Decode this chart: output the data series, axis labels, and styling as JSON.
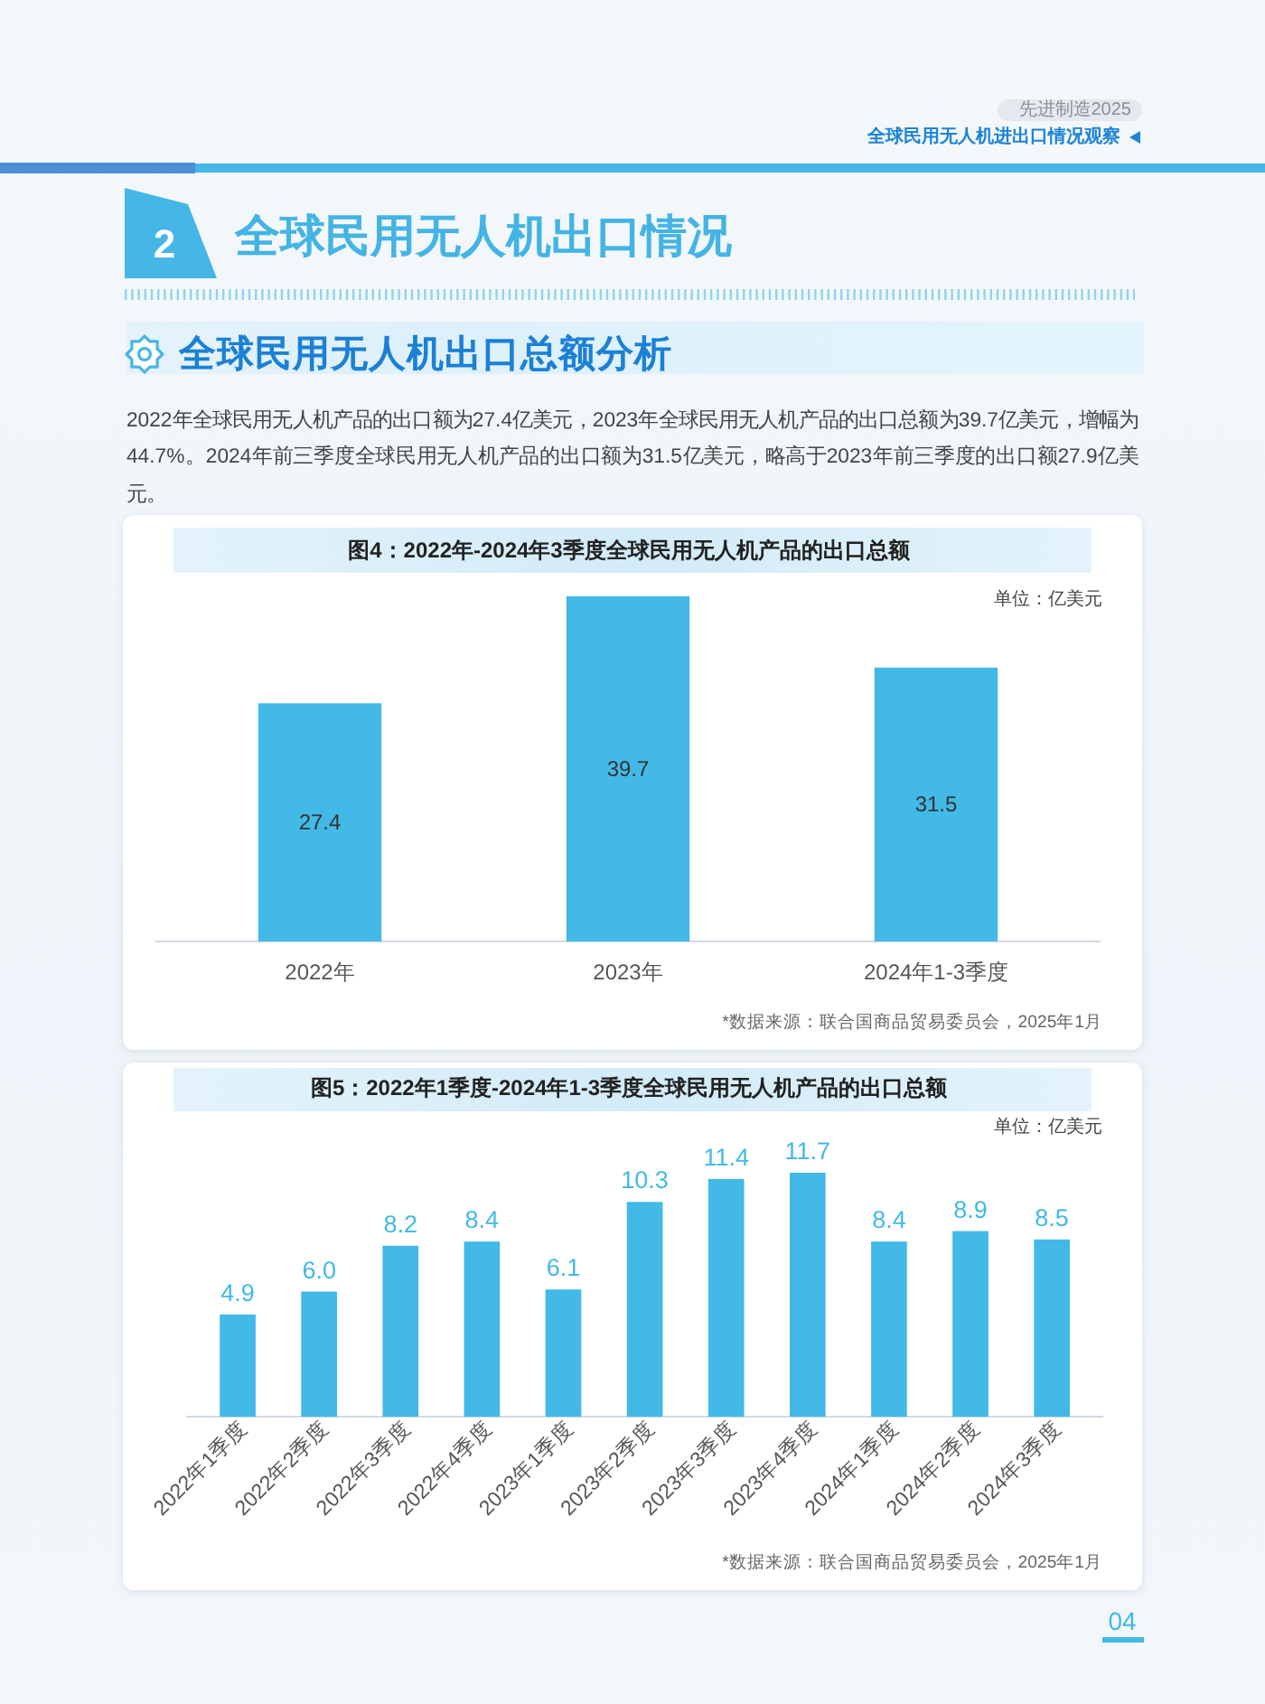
{
  "chart_data": [
    {
      "type": "bar",
      "title": "图4：2022年-2024年3季度全球民用无人机产品的出口总额",
      "ylabel": "单位：亿美元",
      "categories": [
        "2022年",
        "2023年",
        "2024年1-3季度"
      ],
      "values": [
        27.4,
        39.7,
        31.5
      ],
      "color": "#42b9e6",
      "data_labels": true,
      "annotations": [
        "先进制造2025",
        "全球民用无人机进出口情况观察",
        "2",
        "全球民用无人机出口情况",
        "全球民用无人机出口总额分析",
        "2022年全球民用无人机产品的出口额为27.4亿美元，2023年全球民用无人机产品的出口总额为39.7亿美元，增幅为44.7%。2024年前三季度全球民用无人机产品的出口额为31.5亿美元，略高于2023年前三季度的出口额27.9亿美元。",
        "*数据来源：联合国商品贸易委员会，2025年1月"
      ]
    },
    {
      "type": "bar",
      "title": "图5：2022年1季度-2024年1-3季度全球民用无人机产品的出口总额",
      "ylabel": "单位：亿美元",
      "categories": [
        "2022年1季度",
        "2022年2季度",
        "2022年3季度",
        "2022年4季度",
        "2023年1季度",
        "2023年2季度",
        "2023年3季度",
        "2023年4季度",
        "2024年1季度",
        "2024年2季度",
        "2024年3季度"
      ],
      "values": [
        4.9,
        6.0,
        8.2,
        8.4,
        6.1,
        10.3,
        11.4,
        11.7,
        8.4,
        8.9,
        8.5
      ],
      "value_labels": [
        "4.9",
        "6.0",
        "8.2",
        "8.4",
        "6.1",
        "10.3",
        "11.4",
        "11.7",
        "8.4",
        "8.9",
        "8.5"
      ],
      "color": "#42b9e6",
      "annotations": [
        "*数据来源：联合国商品贸易委员会，2025年1月",
        "04"
      ]
    }
  ]
}
